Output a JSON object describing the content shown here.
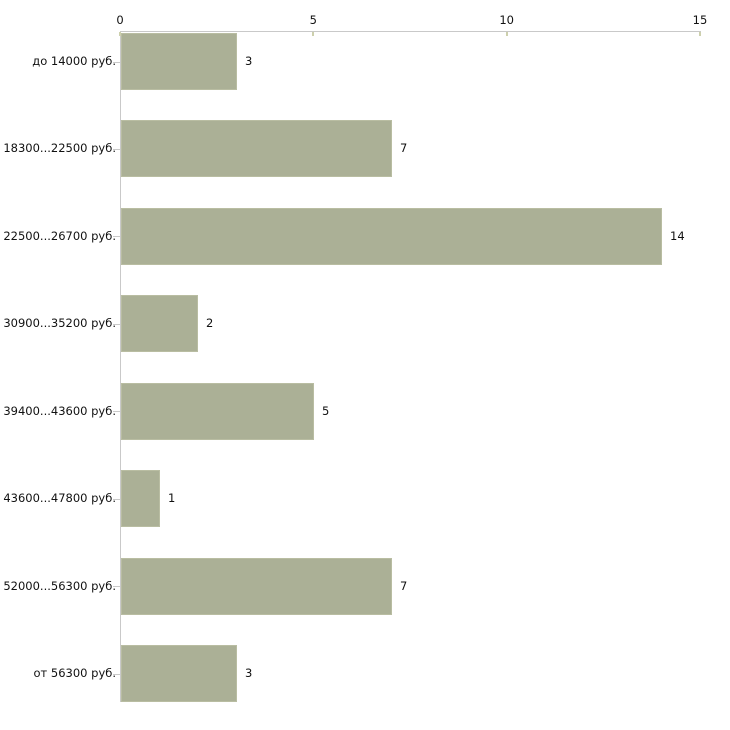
{
  "page": {
    "background": "#ffffff"
  },
  "chart_data": {
    "type": "bar",
    "orientation": "horizontal",
    "title": "",
    "categories": [
      "до 14000 руб.",
      "18300...22500 руб.",
      "22500...26700 руб.",
      "30900...35200 руб.",
      "39400...43600 руб.",
      "43600...47800 руб.",
      "52000...56300 руб.",
      "от 56300 руб."
    ],
    "values": [
      3,
      7,
      14,
      2,
      5,
      1,
      7,
      3
    ],
    "xlabel": "",
    "ylabel": "",
    "xlim": [
      0,
      15
    ],
    "x_ticks": [
      0,
      5,
      10,
      15
    ],
    "x_axis_position": "top",
    "grid": false,
    "legend": "none",
    "colors": {
      "bar": "#abb096",
      "bar_border": "#b9bda2",
      "axis": "#c9c9c9",
      "axis_tick": "#cdd0ad",
      "text": "#111111",
      "background": "#ffffff"
    }
  }
}
